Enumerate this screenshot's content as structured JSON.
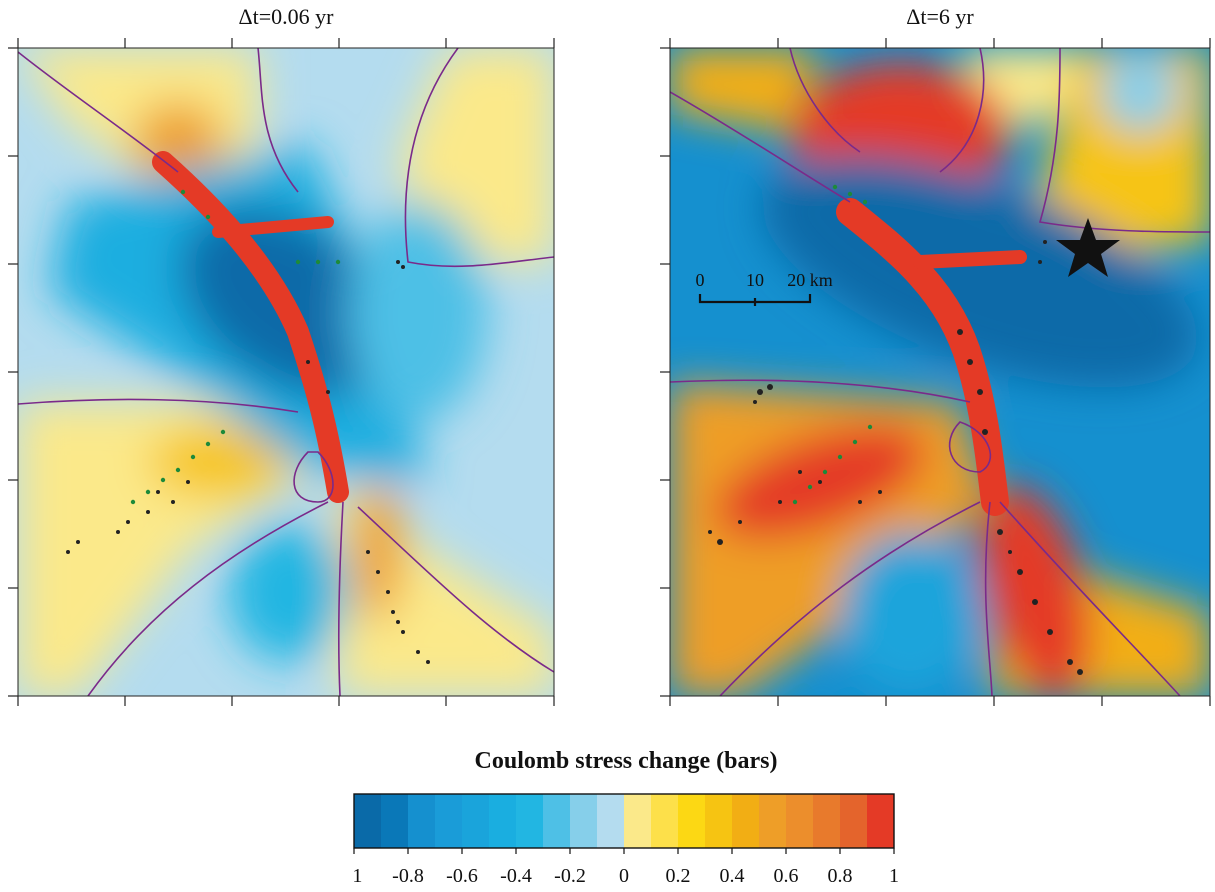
{
  "figure": {
    "panels": [
      {
        "title": "Δt=0.06 yr"
      },
      {
        "title": "Δt=6 yr"
      }
    ],
    "scale_bar": {
      "labels": [
        "0",
        "10",
        "20 km"
      ]
    },
    "marker": "black-star"
  },
  "chart_data": {
    "type": "heatmap",
    "title": "Coulomb stress change (bars)",
    "colorbar": {
      "label": "Coulomb stress change (bars)",
      "range": [
        -1,
        1
      ],
      "ticks": [
        "-1",
        "-0.8",
        "-0.6",
        "-0.4",
        "-0.2",
        "0",
        "0.2",
        "0.4",
        "0.6",
        "0.8",
        "1"
      ],
      "bins": [
        -1,
        -0.9,
        -0.8,
        -0.7,
        -0.6,
        -0.5,
        -0.4,
        -0.3,
        -0.2,
        -0.1,
        0,
        0.1,
        0.2,
        0.3,
        0.4,
        0.5,
        0.6,
        0.7,
        0.8,
        0.9,
        1
      ],
      "colors": [
        "#0a6aa8",
        "#0a78b8",
        "#1590cf",
        "#1a9cd8",
        "#1aa4db",
        "#1aaee0",
        "#22b6e2",
        "#4ec0e6",
        "#86cfea",
        "#b4dcef",
        "#fbe98a",
        "#fde04a",
        "#fcd814",
        "#f6c412",
        "#f2ae14",
        "#ee9e28",
        "#ec8e2c",
        "#e87a2c",
        "#e4642c",
        "#e43a26"
      ]
    },
    "panels": [
      {
        "title": "Δt=0.06 yr"
      },
      {
        "title": "Δt=6 yr"
      }
    ],
    "grid": false
  }
}
